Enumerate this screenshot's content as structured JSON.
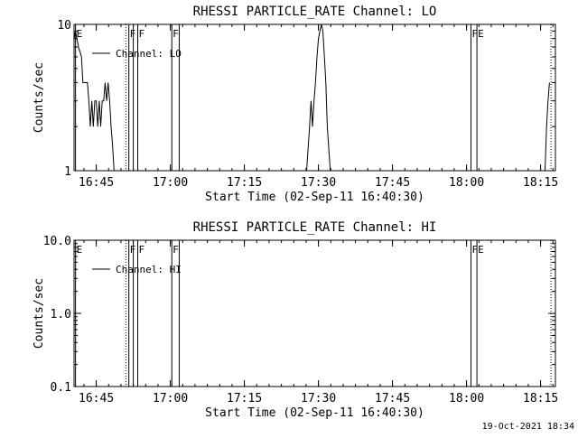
{
  "footer": {
    "timestamp": "19-Oct-2021 18:34"
  },
  "chart_data": [
    {
      "type": "line",
      "title": "RHESSI PARTICLE_RATE Channel: LO",
      "xlabel": "Start Time (02-Sep-11 16:40:30)",
      "ylabel": "Counts/sec",
      "xlim_min": [
        16.675,
        18.3
      ],
      "yscale": "log",
      "ylim": [
        1,
        10
      ],
      "x_ticks": [
        {
          "value_min": 16.75,
          "label": "16:45"
        },
        {
          "value_min": 17.0,
          "label": "17:00"
        },
        {
          "value_min": 17.25,
          "label": "17:15"
        },
        {
          "value_min": 17.5,
          "label": "17:30"
        },
        {
          "value_min": 17.75,
          "label": "17:45"
        },
        {
          "value_min": 18.0,
          "label": "18:00"
        },
        {
          "value_min": 18.25,
          "label": "18:15"
        }
      ],
      "y_ticks": [
        {
          "value": 1,
          "label": "1"
        },
        {
          "value": 10,
          "label": "10"
        }
      ],
      "legend": {
        "position": "top-left",
        "label": "Channel: LO"
      },
      "series": [
        {
          "name": "Channel: LO",
          "segments": [
            [
              [
                16.675,
                8
              ],
              [
                16.68,
                9
              ],
              [
                16.69,
                7
              ],
              [
                16.7,
                6
              ],
              [
                16.705,
                4
              ],
              [
                16.71,
                4
              ],
              [
                16.715,
                4
              ],
              [
                16.72,
                4
              ],
              [
                16.725,
                3
              ],
              [
                16.73,
                2
              ],
              [
                16.735,
                3
              ],
              [
                16.74,
                2
              ],
              [
                16.745,
                3
              ],
              [
                16.75,
                3
              ],
              [
                16.755,
                2
              ],
              [
                16.76,
                3
              ],
              [
                16.765,
                2
              ],
              [
                16.77,
                3
              ],
              [
                16.775,
                3
              ],
              [
                16.78,
                4
              ],
              [
                16.785,
                3
              ],
              [
                16.79,
                4
              ],
              [
                16.795,
                3
              ],
              [
                16.8,
                2
              ],
              [
                16.805,
                1.5
              ],
              [
                16.81,
                1
              ]
            ],
            [
              [
                17.46,
                1
              ],
              [
                17.47,
                2
              ],
              [
                17.475,
                3
              ],
              [
                17.48,
                2
              ],
              [
                17.485,
                3
              ],
              [
                17.49,
                4
              ],
              [
                17.495,
                6
              ],
              [
                17.5,
                8
              ],
              [
                17.505,
                9
              ],
              [
                17.51,
                10
              ],
              [
                17.515,
                9
              ],
              [
                17.52,
                6
              ],
              [
                17.525,
                4
              ],
              [
                17.53,
                2
              ],
              [
                17.54,
                1
              ]
            ],
            [
              [
                18.265,
                1
              ],
              [
                18.27,
                2
              ],
              [
                18.275,
                3
              ],
              [
                18.28,
                4
              ]
            ]
          ]
        }
      ],
      "flag_lines": [
        {
          "x": 16.68,
          "label": "E",
          "style": "solid"
        },
        {
          "x": 16.85,
          "label": "",
          "style": "dotted"
        },
        {
          "x": 16.86,
          "label": "F",
          "style": "solid"
        },
        {
          "x": 16.875,
          "label": "",
          "style": "solid"
        },
        {
          "x": 16.89,
          "label": "F",
          "style": "solid"
        },
        {
          "x": 17.005,
          "label": "F",
          "style": "solid"
        },
        {
          "x": 17.03,
          "label": "",
          "style": "solid"
        },
        {
          "x": 18.015,
          "label": "F",
          "style": "solid"
        },
        {
          "x": 18.035,
          "label": "E",
          "style": "solid"
        },
        {
          "x": 18.285,
          "label": "",
          "style": "dotted"
        }
      ]
    },
    {
      "type": "line",
      "title": "RHESSI PARTICLE_RATE Channel: HI",
      "xlabel": "Start Time (02-Sep-11 16:40:30)",
      "ylabel": "Counts/sec",
      "xlim_min": [
        16.675,
        18.3
      ],
      "yscale": "log",
      "ylim": [
        0.1,
        10
      ],
      "x_ticks": [
        {
          "value_min": 16.75,
          "label": "16:45"
        },
        {
          "value_min": 17.0,
          "label": "17:00"
        },
        {
          "value_min": 17.25,
          "label": "17:15"
        },
        {
          "value_min": 17.5,
          "label": "17:30"
        },
        {
          "value_min": 17.75,
          "label": "17:45"
        },
        {
          "value_min": 18.0,
          "label": "18:00"
        },
        {
          "value_min": 18.25,
          "label": "18:15"
        }
      ],
      "y_ticks": [
        {
          "value": 0.1,
          "label": "0.1"
        },
        {
          "value": 1,
          "label": "1.0"
        },
        {
          "value": 10,
          "label": "10.0"
        }
      ],
      "legend": {
        "position": "top-left",
        "label": "Channel: HI"
      },
      "series": [
        {
          "name": "Channel: HI",
          "segments": []
        }
      ],
      "flag_lines": [
        {
          "x": 16.68,
          "label": "E",
          "style": "solid"
        },
        {
          "x": 16.85,
          "label": "",
          "style": "dotted"
        },
        {
          "x": 16.86,
          "label": "F",
          "style": "solid"
        },
        {
          "x": 16.875,
          "label": "",
          "style": "solid"
        },
        {
          "x": 16.89,
          "label": "F",
          "style": "solid"
        },
        {
          "x": 17.005,
          "label": "F",
          "style": "solid"
        },
        {
          "x": 17.03,
          "label": "",
          "style": "solid"
        },
        {
          "x": 18.015,
          "label": "F",
          "style": "solid"
        },
        {
          "x": 18.035,
          "label": "E",
          "style": "solid"
        },
        {
          "x": 18.285,
          "label": "",
          "style": "dotted"
        }
      ]
    }
  ]
}
